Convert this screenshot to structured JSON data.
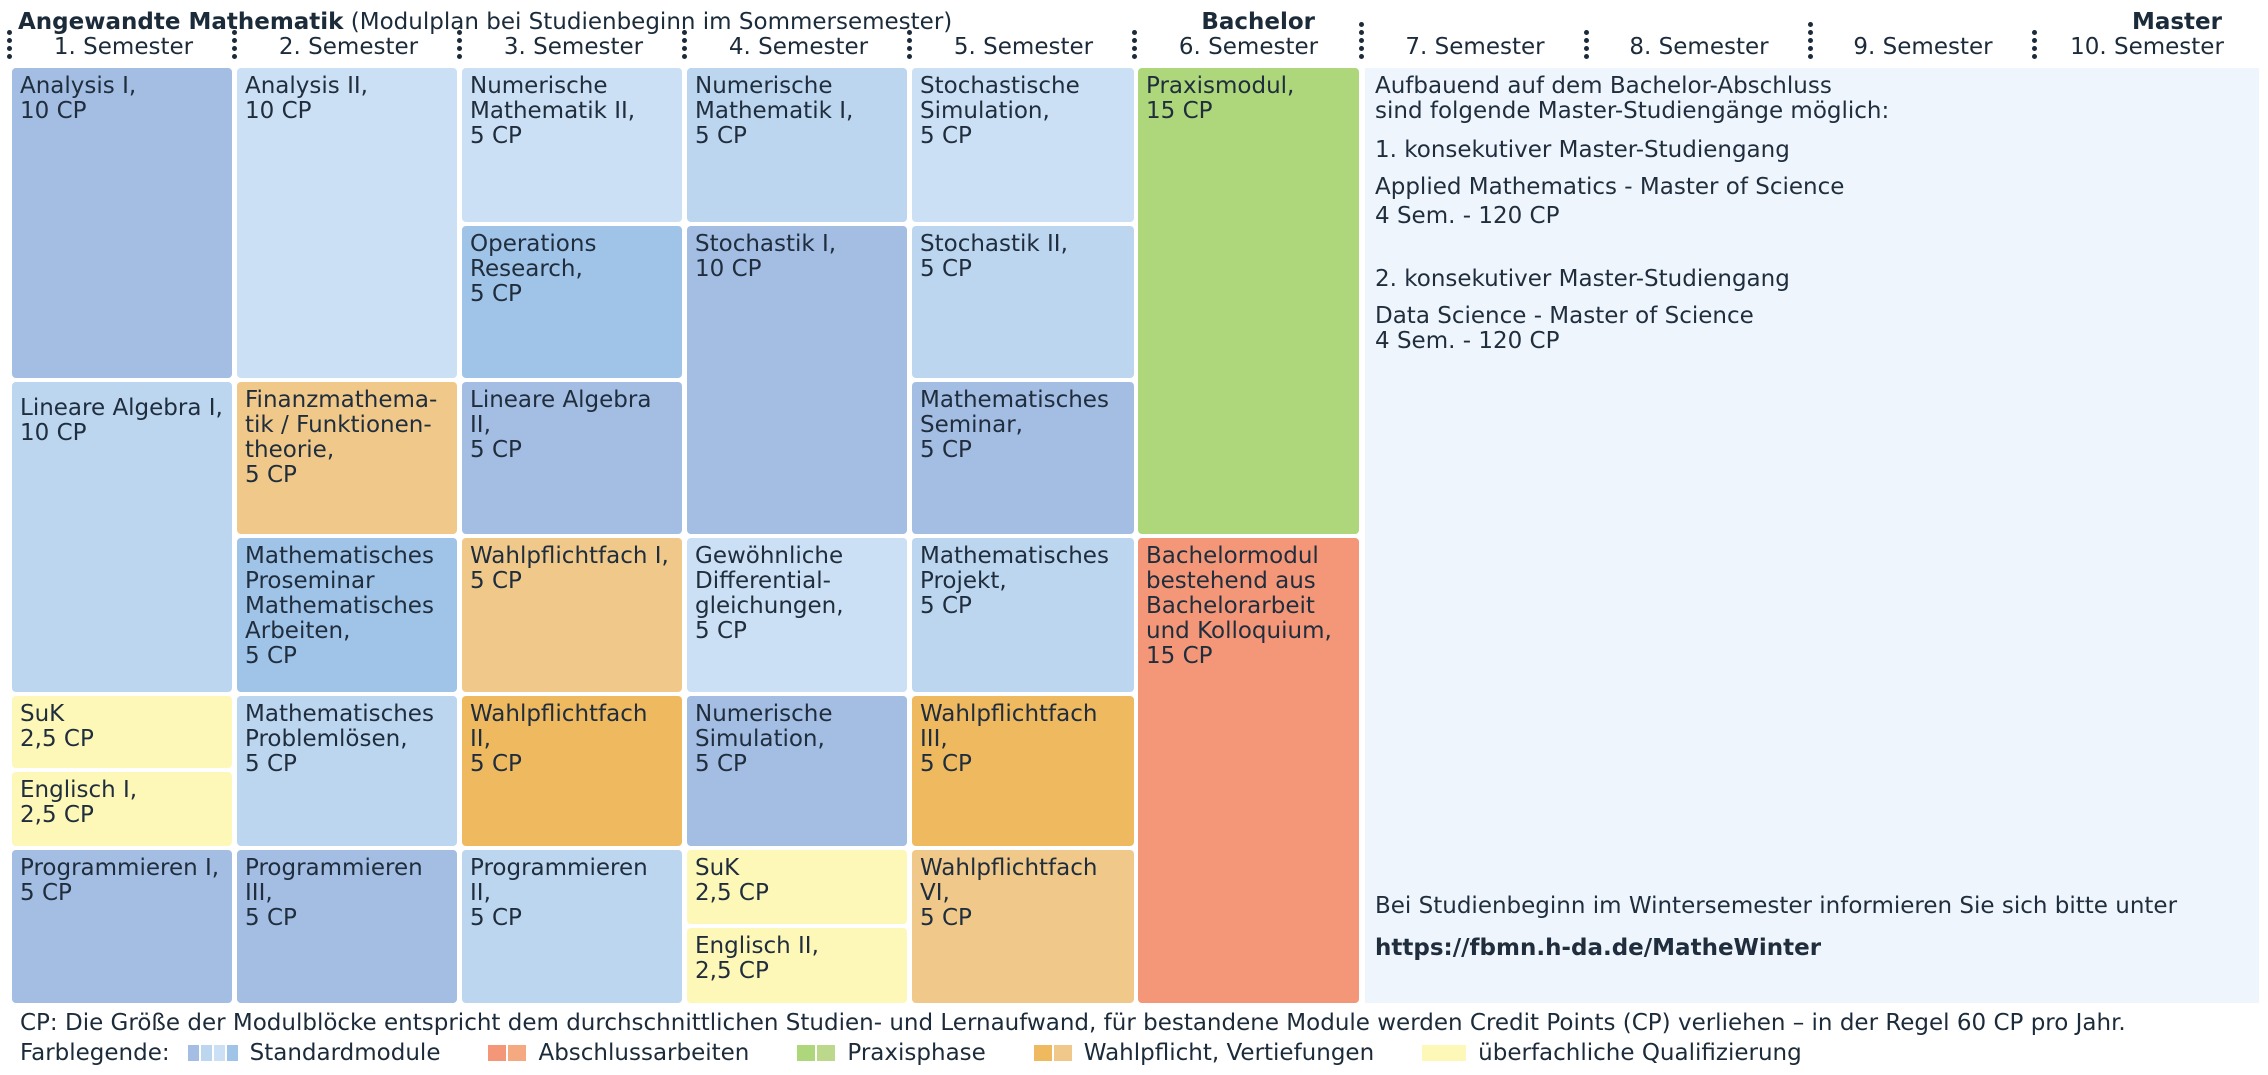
{
  "title": {
    "bold": "Angewandte Mathematik",
    "rest": " (Modulplan bei Studienbeginn im Sommersemester)"
  },
  "sections": {
    "bachelor": "Bachelor",
    "master": "Master"
  },
  "semesters": [
    "1. Semester",
    "2. Semester",
    "3. Semester",
    "4. Semester",
    "5. Semester",
    "6. Semester",
    "7. Semester",
    "8. Semester",
    "9. Semester",
    "10. Semester"
  ],
  "colors": {
    "standard_1": "#a3bde3",
    "standard_2": "#bcd6ef",
    "standard_3": "#cbe0f4",
    "standard_4": "#a0c3e8",
    "abschluss": "#f49778",
    "praxis": "#aed67a",
    "wahlpflicht_1": "#f0c98a",
    "wahlpflicht_2": "#efb95f",
    "qualifizierung": "#fdf7b8",
    "info": "#eef5fc"
  },
  "modules": [
    {
      "name": "Analysis I,",
      "cp": "10 CP"
    },
    {
      "name": "Lineare Algebra I,",
      "cp": "10 CP"
    },
    {
      "name": "SuK",
      "cp": "2,5 CP"
    },
    {
      "name": "Englisch I,",
      "cp": "2,5 CP"
    },
    {
      "name": "Programmieren I,",
      "cp": "5 CP"
    },
    {
      "name": "Analysis II,",
      "cp": "10 CP"
    },
    {
      "name": "Finanzmathema-\ntik / Funktionen-\ntheorie,",
      "cp": "5 CP"
    },
    {
      "name": "Mathematisches\nProseminar\nMathematisches\nArbeiten,",
      "cp": "5 CP"
    },
    {
      "name": "Mathematisches\nProblemlösen,",
      "cp": "5 CP"
    },
    {
      "name": "Programmieren III,",
      "cp": "5 CP"
    },
    {
      "name": "Numerische\nMathematik II,",
      "cp": "5 CP"
    },
    {
      "name": "Operations\nResearch,",
      "cp": "5 CP"
    },
    {
      "name": "Lineare Algebra II,",
      "cp": "5 CP"
    },
    {
      "name": "Wahlpflichtfach I,",
      "cp": "5 CP"
    },
    {
      "name": "Wahlpflichtfach II,",
      "cp": "5 CP"
    },
    {
      "name": "Programmieren II,",
      "cp": "5 CP"
    },
    {
      "name": "Numerische\nMathematik I,",
      "cp": "5 CP"
    },
    {
      "name": "Stochastik I,",
      "cp": "10 CP"
    },
    {
      "name": "Gewöhnliche\nDifferential-\ngleichungen,",
      "cp": "5 CP"
    },
    {
      "name": "Numerische\nSimulation,",
      "cp": "5 CP"
    },
    {
      "name": "SuK",
      "cp": "2,5 CP"
    },
    {
      "name": "Englisch II,",
      "cp": "2,5 CP"
    },
    {
      "name": "Stochastische\nSimulation,",
      "cp": "5 CP"
    },
    {
      "name": "Stochastik II,",
      "cp": "5 CP"
    },
    {
      "name": "Mathematisches\nSeminar,",
      "cp": "5 CP"
    },
    {
      "name": "Mathematisches\nProjekt,",
      "cp": "5 CP"
    },
    {
      "name": "Wahlpflichtfach III,",
      "cp": "5 CP"
    },
    {
      "name": "Wahlpflichtfach VI,",
      "cp": "5 CP"
    },
    {
      "name": "Praxismodul,",
      "cp": "15 CP"
    },
    {
      "name": "Bachelormodul\nbestehend aus\nBachelorarbeit\nund Kolloquium,",
      "cp": "15 CP"
    }
  ],
  "master_info": {
    "intro": "Aufbauend auf dem Bachelor-Abschluss\nsind folgende Master-Studiengänge möglich:",
    "prog1_heading": "1. konsekutiver Master-Studiengang",
    "prog1_name": "Applied Mathematics - Master of Science",
    "prog1_duration": "4 Sem. - 120 CP",
    "prog2_heading": "2. konsekutiver Master-Studiengang",
    "prog2_name": "Data Science - Master of Science",
    "prog2_duration": "4 Sem. - 120 CP",
    "winter_note": "Bei Studienbeginn im Wintersemester informieren Sie sich bitte unter",
    "winter_link": "https://fbmn.h-da.de/MatheWinter"
  },
  "footnote": "CP: Die Größe der Modulblöcke entspricht dem durchschnittlichen Studien- und Lernaufwand, für bestandene Module werden Credit Points (CP) verliehen – in der Regel 60 CP pro Jahr.",
  "legend": {
    "label": "Farblegende:",
    "items": [
      {
        "label": "Standardmodule",
        "colors": [
          "#a3bde3",
          "#bcd6ef",
          "#cbe0f4",
          "#a0c3e8"
        ]
      },
      {
        "label": "Abschlussarbeiten",
        "colors": [
          "#f49778",
          "#f5a980"
        ]
      },
      {
        "label": "Praxisphase",
        "colors": [
          "#aed67a",
          "#bcd88a"
        ]
      },
      {
        "label": "Wahlpflicht, Vertiefungen",
        "colors": [
          "#efb95f",
          "#f0c98a"
        ]
      },
      {
        "label": "überfachliche Qualifizierung",
        "colors": [
          "#fdf7b8"
        ]
      }
    ]
  }
}
